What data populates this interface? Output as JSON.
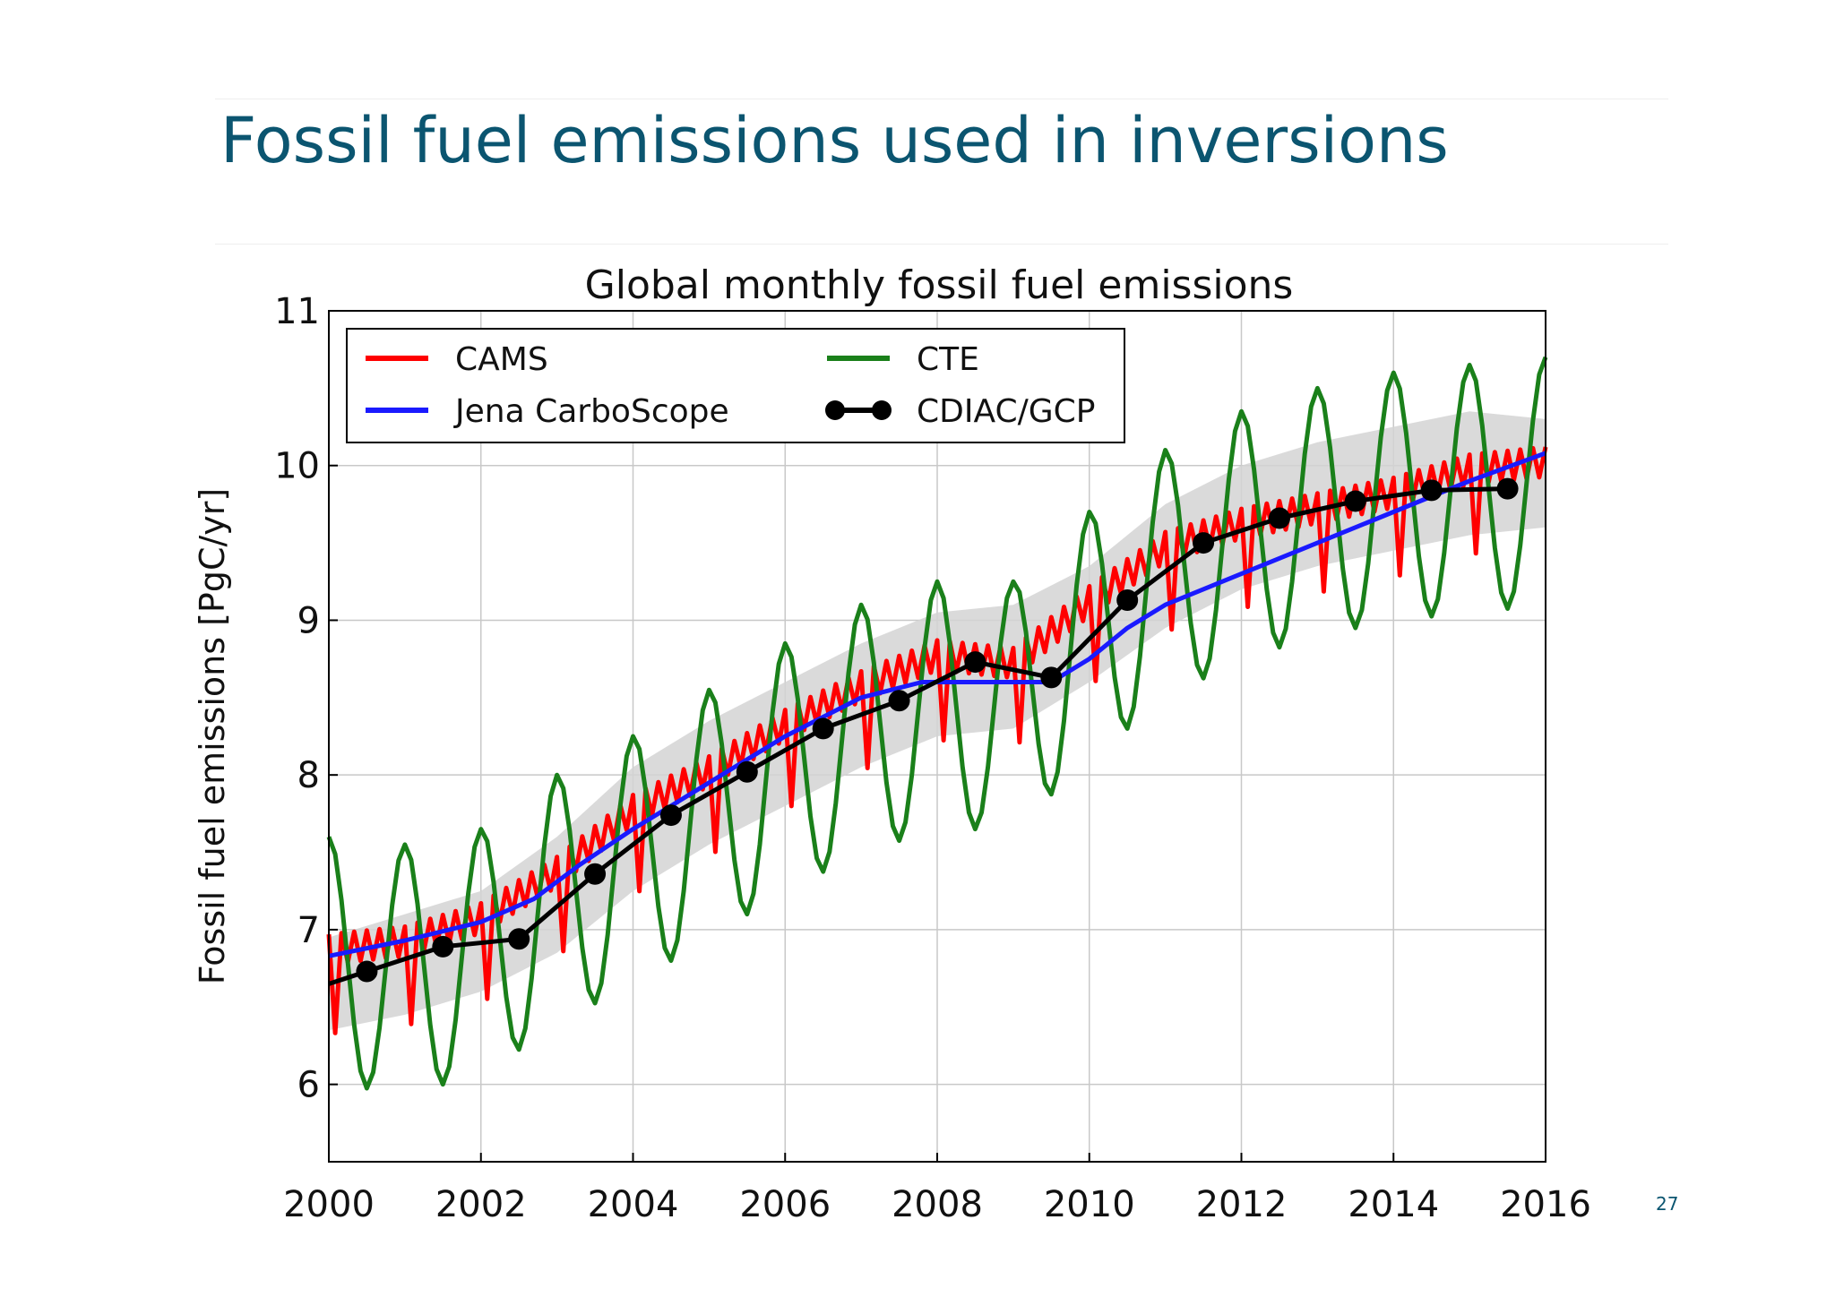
{
  "slide": {
    "title": "Fossil fuel emissions used in inversions",
    "page_number": "27"
  },
  "chart_data": {
    "type": "line",
    "title": "Global monthly fossil fuel emissions",
    "xlabel": "",
    "ylabel": "Fossil fuel emissions [PgC/yr]",
    "xlim": [
      2000,
      2016
    ],
    "ylim": [
      5.5,
      11
    ],
    "xticks": [
      2000,
      2002,
      2004,
      2006,
      2008,
      2010,
      2012,
      2014,
      2016
    ],
    "yticks": [
      6,
      7,
      8,
      9,
      10,
      11
    ],
    "grid": true,
    "legend_position": "top-left",
    "series": [
      {
        "name": "CAMS",
        "color": "#ff0000",
        "kind": "monthly-seasonal",
        "annual_means": [
          [
            2000,
            6.85
          ],
          [
            2001,
            6.9
          ],
          [
            2002,
            7.05
          ],
          [
            2003,
            7.35
          ],
          [
            2004,
            7.75
          ],
          [
            2005,
            8.0
          ],
          [
            2006,
            8.3
          ],
          [
            2007,
            8.55
          ],
          [
            2008,
            8.75
          ],
          [
            2009,
            8.7
          ],
          [
            2010,
            9.1
          ],
          [
            2011,
            9.45
          ],
          [
            2012,
            9.6
          ],
          [
            2013,
            9.7
          ],
          [
            2014,
            9.8
          ],
          [
            2015,
            9.95
          ],
          [
            2016,
            10.0
          ]
        ],
        "amplitude": 0.12,
        "dip": 0.45
      },
      {
        "name": "CTE",
        "color": "#1a801a",
        "kind": "monthly-seasonal",
        "annual_means": [
          [
            2000,
            6.8
          ],
          [
            2001,
            6.75
          ],
          [
            2002,
            6.85
          ],
          [
            2003,
            7.2
          ],
          [
            2004,
            7.45
          ],
          [
            2005,
            7.75
          ],
          [
            2006,
            8.05
          ],
          [
            2007,
            8.3
          ],
          [
            2008,
            8.45
          ],
          [
            2009,
            8.45
          ],
          [
            2010,
            8.9
          ],
          [
            2011,
            9.3
          ],
          [
            2012,
            9.55
          ],
          [
            2013,
            9.7
          ],
          [
            2014,
            9.8
          ],
          [
            2015,
            9.85
          ],
          [
            2016,
            9.9
          ]
        ],
        "amplitude": 0.8
      },
      {
        "name": "Jena CarboScope",
        "color": "#1a1aff",
        "x": [
          2000,
          2001,
          2002,
          2002.7,
          2003.3,
          2004,
          2005,
          2006,
          2007,
          2007.8,
          2008.5,
          2009.5,
          2010,
          2010.5,
          2011,
          2012,
          2013,
          2014,
          2015,
          2016
        ],
        "y": [
          6.83,
          6.93,
          7.05,
          7.2,
          7.42,
          7.65,
          7.95,
          8.25,
          8.5,
          8.6,
          8.6,
          8.6,
          8.75,
          8.95,
          9.1,
          9.3,
          9.5,
          9.7,
          9.9,
          10.08
        ]
      },
      {
        "name": "CDIAC/GCP",
        "color": "#000000",
        "markers": true,
        "x": [
          2000,
          2000.5,
          2001.5,
          2002.5,
          2003.5,
          2004.5,
          2005.5,
          2006.5,
          2007.5,
          2008.5,
          2009.5,
          2010.5,
          2011.5,
          2012.5,
          2013.5,
          2014.5,
          2015.5
        ],
        "y": [
          6.65,
          6.73,
          6.89,
          6.94,
          7.36,
          7.74,
          8.02,
          8.3,
          8.48,
          8.73,
          8.63,
          9.13,
          9.5,
          9.66,
          9.77,
          9.84,
          9.85
        ]
      }
    ],
    "uncertainty_band": {
      "name": "",
      "color": "#d3d3d3",
      "x": [
        2000,
        2001,
        2002,
        2003,
        2004,
        2005,
        2006,
        2007,
        2008,
        2009,
        2010,
        2011,
        2012,
        2013,
        2014,
        2015,
        2016
      ],
      "y_low": [
        6.35,
        6.45,
        6.6,
        6.85,
        7.25,
        7.55,
        7.8,
        8.05,
        8.25,
        8.3,
        8.6,
        8.95,
        9.2,
        9.35,
        9.45,
        9.55,
        9.6
      ],
      "y_high": [
        6.95,
        7.1,
        7.25,
        7.6,
        8.05,
        8.35,
        8.6,
        8.85,
        9.05,
        9.1,
        9.35,
        9.75,
        10.0,
        10.15,
        10.25,
        10.35,
        10.3
      ]
    }
  }
}
